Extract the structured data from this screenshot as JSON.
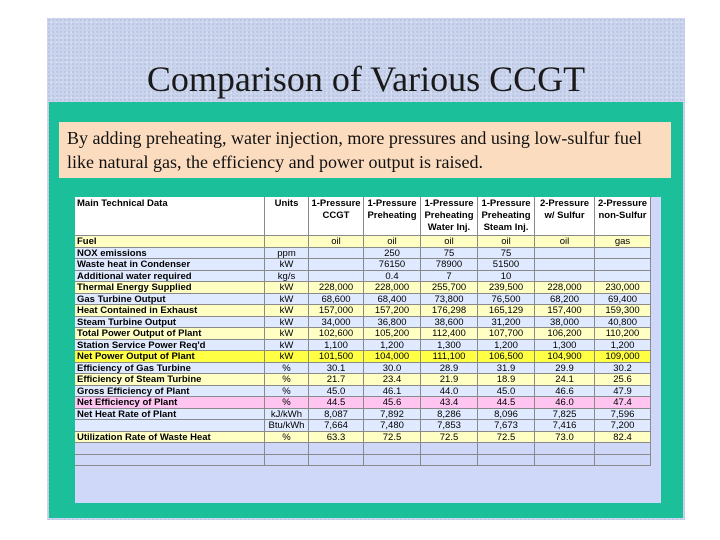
{
  "title": "Comparison of Various CCGT",
  "subtitle": "By adding preheating, water injection, more pressures and using low-sulfur fuel like natural gas, the efficiency and power output is raised.",
  "table": {
    "headers": [
      "Main Technical Data",
      "Units",
      "1-Pressure CCGT",
      "1-Pressure Preheating",
      "1-Pressure Preheating Water Inj.",
      "1-Pressure Preheating Steam Inj.",
      "2-Pressure w/ Sulfur",
      "2-Pressure non-Sulfur"
    ],
    "rows": [
      {
        "label": "Fuel",
        "unit": "",
        "values": [
          "oil",
          "oil",
          "oil",
          "oil",
          "oil",
          "gas"
        ],
        "style": "y"
      },
      {
        "label": "NOX emissions",
        "unit": "ppm",
        "values": [
          "",
          "250",
          "75",
          "75",
          "",
          ""
        ],
        "style": "g"
      },
      {
        "label": "Waste heat in Condenser",
        "unit": "kW",
        "values": [
          "",
          "76150",
          "78900",
          "51500",
          "",
          ""
        ],
        "style": "g"
      },
      {
        "label": "Additional water required",
        "unit": "kg/s",
        "values": [
          "",
          "0.4",
          "7",
          "10",
          "",
          ""
        ],
        "style": "g"
      },
      {
        "label": "Thermal Energy Supplied",
        "unit": "kW",
        "values": [
          "228,000",
          "228,000",
          "255,700",
          "239,500",
          "228,000",
          "230,000"
        ],
        "style": "y"
      },
      {
        "label": "Gas Turbine Output",
        "unit": "kW",
        "values": [
          "68,600",
          "68,400",
          "73,800",
          "76,500",
          "68,200",
          "69,400"
        ],
        "style": "g"
      },
      {
        "label": "Heat Contained in Exhaust",
        "unit": "kW",
        "values": [
          "157,000",
          "157,200",
          "176,298",
          "165,129",
          "157,400",
          "159,300"
        ],
        "style": "y"
      },
      {
        "label": "Steam Turbine Output",
        "unit": "kW",
        "values": [
          "34,000",
          "36,800",
          "38,600",
          "31,200",
          "38,000",
          "40,800"
        ],
        "style": "g"
      },
      {
        "label": "Total Power Output of Plant",
        "unit": "kW",
        "values": [
          "102,600",
          "105,200",
          "112,400",
          "107,700",
          "106,200",
          "110,200"
        ],
        "style": "y"
      },
      {
        "label": "Station Service Power Req'd",
        "unit": "kW",
        "values": [
          "1,100",
          "1,200",
          "1,300",
          "1,200",
          "1,300",
          "1,200"
        ],
        "style": "g"
      },
      {
        "label": "Net Power Output of Plant",
        "unit": "kW",
        "values": [
          "101,500",
          "104,000",
          "111,100",
          "106,500",
          "104,900",
          "109,000"
        ],
        "style": "hl"
      },
      {
        "label": "Efficiency of Gas Turbine",
        "unit": "%",
        "values": [
          "30.1",
          "30.0",
          "28.9",
          "31.9",
          "29.9",
          "30.2"
        ],
        "style": "g"
      },
      {
        "label": "Efficiency of Steam Turbine",
        "unit": "%",
        "values": [
          "21.7",
          "23.4",
          "21.9",
          "18.9",
          "24.1",
          "25.6"
        ],
        "style": "y"
      },
      {
        "label": "Gross Efficiency of Plant",
        "unit": "%",
        "values": [
          "45.0",
          "46.1",
          "44.0",
          "45.0",
          "46.6",
          "47.9"
        ],
        "style": "g"
      },
      {
        "label": "Net Efficiency of Plant",
        "unit": "%",
        "values": [
          "44.5",
          "45.6",
          "43.4",
          "44.5",
          "46.0",
          "47.4"
        ],
        "style": "pk"
      },
      {
        "label": "Net Heat Rate of Plant",
        "unit": "kJ/kWh",
        "values": [
          "8,087",
          "7,892",
          "8,286",
          "8,096",
          "7,825",
          "7,596"
        ],
        "style": "g"
      },
      {
        "label": "",
        "unit": "Btu/kWh",
        "values": [
          "7,664",
          "7,480",
          "7,853",
          "7,673",
          "7,416",
          "7,200"
        ],
        "style": "g"
      },
      {
        "label": "Utilization Rate of Waste Heat",
        "unit": "%",
        "values": [
          "63.3",
          "72.5",
          "72.5",
          "72.5",
          "73.0",
          "82.4"
        ],
        "style": "y"
      },
      {
        "label": "",
        "unit": "",
        "values": [
          "",
          "",
          "",
          "",
          "",
          ""
        ],
        "style": "b"
      },
      {
        "label": "",
        "unit": "",
        "values": [
          "",
          "",
          "",
          "",
          "",
          ""
        ],
        "style": "b"
      }
    ]
  }
}
